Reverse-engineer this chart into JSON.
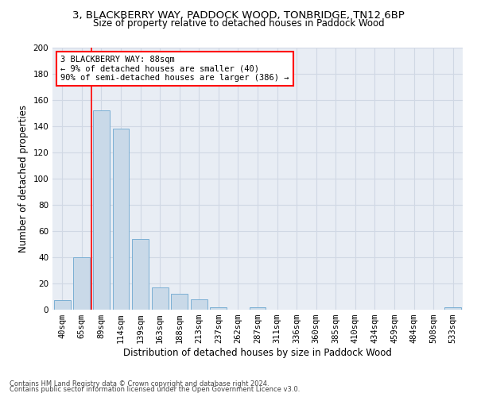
{
  "title_line1": "3, BLACKBERRY WAY, PADDOCK WOOD, TONBRIDGE, TN12 6BP",
  "title_line2": "Size of property relative to detached houses in Paddock Wood",
  "xlabel": "Distribution of detached houses by size in Paddock Wood",
  "ylabel": "Number of detached properties",
  "bar_labels": [
    "40sqm",
    "65sqm",
    "89sqm",
    "114sqm",
    "139sqm",
    "163sqm",
    "188sqm",
    "213sqm",
    "237sqm",
    "262sqm",
    "287sqm",
    "311sqm",
    "336sqm",
    "360sqm",
    "385sqm",
    "410sqm",
    "434sqm",
    "459sqm",
    "484sqm",
    "508sqm",
    "533sqm"
  ],
  "bar_values": [
    7,
    40,
    152,
    138,
    54,
    17,
    12,
    8,
    2,
    0,
    2,
    0,
    0,
    0,
    0,
    0,
    0,
    0,
    0,
    0,
    2
  ],
  "bar_color": "#c9d9e8",
  "bar_edge_color": "#7bafd4",
  "grid_color": "#d0d8e4",
  "bg_color": "#e8edf4",
  "annotation_text": "3 BLACKBERRY WAY: 88sqm\n← 9% of detached houses are smaller (40)\n90% of semi-detached houses are larger (386) →",
  "annotation_box_color": "white",
  "annotation_box_edge_color": "red",
  "footer_line1": "Contains HM Land Registry data © Crown copyright and database right 2024.",
  "footer_line2": "Contains public sector information licensed under the Open Government Licence v3.0.",
  "ylim": [
    0,
    200
  ],
  "yticks": [
    0,
    20,
    40,
    60,
    80,
    100,
    120,
    140,
    160,
    180,
    200
  ],
  "title1_fontsize": 9.5,
  "title2_fontsize": 8.5,
  "tick_fontsize": 7.5,
  "axis_label_fontsize": 8.5,
  "annotation_fontsize": 7.5,
  "footer_fontsize": 6.0
}
